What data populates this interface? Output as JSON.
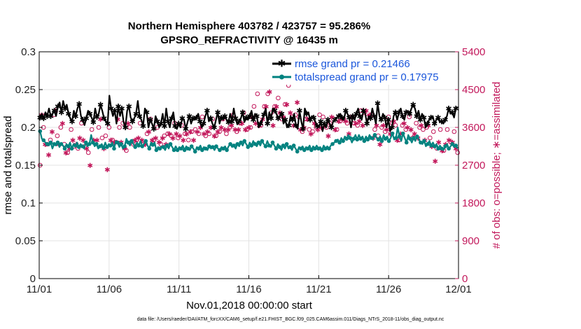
{
  "chart_data": {
    "type": "line",
    "title": "Northern Hemisphere 403782 / 423757 = 95.286%",
    "subtitle": "GPSRO_REFRACTIVITY @ 16435 m",
    "xlabel": "Nov.01,2018 00:00:00 start",
    "ylabel": "rmse and totalspread",
    "ylabel_right": "# of obs: o=possible; ∗=assimilated",
    "footnote": "data file: /Users/raeder/DAI/ATM_forcXX/CAM6_setup/f.e21.FHIST_BGC.f09_025.CAM6assim.011/Diags_NTrS_2018-11/obs_diag_output.nc",
    "xlim": [
      0,
      30
    ],
    "ylim": [
      0,
      0.3
    ],
    "ylim_right": [
      0,
      5400
    ],
    "grid": true,
    "x_ticks": [
      0,
      5,
      10,
      15,
      20,
      25,
      30
    ],
    "x_tick_labels": [
      "11/01",
      "11/06",
      "11/11",
      "11/16",
      "11/21",
      "11/26",
      "12/01"
    ],
    "y_ticks": [
      0,
      0.05,
      0.1,
      0.15,
      0.2,
      0.25,
      0.3
    ],
    "y_tick_labels": [
      "0",
      "0.05",
      "0.1",
      "0.15",
      "0.2",
      "0.25",
      "0.3"
    ],
    "y_ticks_right": [
      0,
      900,
      1800,
      2700,
      3600,
      4500,
      5400
    ],
    "y_tick_labels_right": [
      "0",
      "900",
      "1800",
      "2700",
      "3600",
      "4500",
      "5400"
    ],
    "legend_position": "top-right",
    "colors": {
      "rmse": "#000000",
      "spread": "#00827f",
      "obs": "#c2185b"
    },
    "series": [
      {
        "name": "rmse grand pr = 0.21466",
        "values": [
          0.213,
          0.218,
          0.212,
          0.22,
          0.215,
          0.225,
          0.215,
          0.218,
          0.222,
          0.215,
          0.228,
          0.233,
          0.22,
          0.235,
          0.225,
          0.23,
          0.218,
          0.212,
          0.208,
          0.222,
          0.215,
          0.225,
          0.231,
          0.215,
          0.21,
          0.203,
          0.212,
          0.222,
          0.218,
          0.213,
          0.207,
          0.225,
          0.214,
          0.218,
          0.23,
          0.222,
          0.212,
          0.208,
          0.205,
          0.242,
          0.225,
          0.215,
          0.222,
          0.205,
          0.228,
          0.215,
          0.225,
          0.207,
          0.2,
          0.222,
          0.228,
          0.213,
          0.208,
          0.212,
          0.218,
          0.235,
          0.215,
          0.21,
          0.202,
          0.225,
          0.22,
          0.2,
          0.21,
          0.205,
          0.198,
          0.215,
          0.208,
          0.2,
          0.205,
          0.218,
          0.202,
          0.225,
          0.208,
          0.2,
          0.212,
          0.22,
          0.202,
          0.198,
          0.205,
          0.2,
          0.212,
          0.21,
          0.198,
          0.207,
          0.215,
          0.205,
          0.212,
          0.21,
          0.213,
          0.218,
          0.208,
          0.2,
          0.205,
          0.215,
          0.222,
          0.208,
          0.212,
          0.205,
          0.2,
          0.21,
          0.22,
          0.205,
          0.213,
          0.21,
          0.215,
          0.21,
          0.207,
          0.218,
          0.208,
          0.225,
          0.212,
          0.204,
          0.208,
          0.212,
          0.22,
          0.207,
          0.213,
          0.21,
          0.215,
          0.222,
          0.21,
          0.218,
          0.215,
          0.2,
          0.205,
          0.21,
          0.217,
          0.225,
          0.205,
          0.22,
          0.212,
          0.225,
          0.222,
          0.218,
          0.212,
          0.215,
          0.218,
          0.205,
          0.21,
          0.2,
          0.203,
          0.215,
          0.21,
          0.218,
          0.203,
          0.198,
          0.222,
          0.208,
          0.198,
          0.225,
          0.218,
          0.22,
          0.21,
          0.215,
          0.213,
          0.207,
          0.202,
          0.2,
          0.208,
          0.195,
          0.205,
          0.2,
          0.21,
          0.205,
          0.2,
          0.208,
          0.21,
          0.213,
          0.215,
          0.218,
          0.213,
          0.21,
          0.222,
          0.218,
          0.213,
          0.2,
          0.215,
          0.21,
          0.218,
          0.225,
          0.215,
          0.21,
          0.222,
          0.218,
          0.205,
          0.215,
          0.212,
          0.225,
          0.215,
          0.205,
          0.232,
          0.215,
          0.21,
          0.218,
          0.213,
          0.2,
          0.21,
          0.195,
          0.2,
          0.215,
          0.22,
          0.21,
          0.22,
          0.225,
          0.215,
          0.21,
          0.22,
          0.222,
          0.218,
          0.225,
          0.23,
          0.225,
          0.215,
          0.222,
          0.21,
          0.218,
          0.213,
          0.2,
          0.205,
          0.21,
          0.213,
          0.215,
          0.205,
          0.21,
          0.213,
          0.207,
          0.208,
          0.205,
          0.21,
          0.215,
          0.225,
          0.218,
          0.22,
          0.213,
          0.225,
          0.227
        ]
      },
      {
        "name": "totalspread grand pr = 0.17975",
        "values": [
          0.195,
          0.185,
          0.183,
          0.18,
          0.178,
          0.176,
          0.18,
          0.172,
          0.178,
          0.176,
          0.18,
          0.174,
          0.178,
          0.176,
          0.172,
          0.178,
          0.175,
          0.18,
          0.172,
          0.178,
          0.176,
          0.18,
          0.174,
          0.178,
          0.175,
          0.172,
          0.18,
          0.175,
          0.178,
          0.19,
          0.18,
          0.175,
          0.178,
          0.172,
          0.175,
          0.178,
          0.173,
          0.18,
          0.174,
          0.178,
          0.176,
          0.18,
          0.172,
          0.182,
          0.18,
          0.174,
          0.178,
          0.172,
          0.175,
          0.185,
          0.18,
          0.176,
          0.182,
          0.178,
          0.174,
          0.18,
          0.176,
          0.182,
          0.175,
          0.178,
          0.182,
          0.176,
          0.172,
          0.18,
          0.177,
          0.18,
          0.17,
          0.174,
          0.172,
          0.175,
          0.174,
          0.17,
          0.176,
          0.172,
          0.178,
          0.174,
          0.17,
          0.175,
          0.17,
          0.174,
          0.172,
          0.176,
          0.17,
          0.175,
          0.172,
          0.17,
          0.175,
          0.172,
          0.168,
          0.174,
          0.172,
          0.176,
          0.17,
          0.174,
          0.172,
          0.17,
          0.175,
          0.172,
          0.174,
          0.17,
          0.175,
          0.172,
          0.17,
          0.174,
          0.172,
          0.175,
          0.17,
          0.175,
          0.178,
          0.174,
          0.176,
          0.172,
          0.178,
          0.175,
          0.18,
          0.176,
          0.182,
          0.178,
          0.174,
          0.18,
          0.176,
          0.182,
          0.178,
          0.175,
          0.18,
          0.176,
          0.182,
          0.178,
          0.175,
          0.182,
          0.176,
          0.174,
          0.18,
          0.176,
          0.172,
          0.178,
          0.174,
          0.17,
          0.176,
          0.172,
          0.178,
          0.172,
          0.174,
          0.17,
          0.176,
          0.172,
          0.168,
          0.174,
          0.172,
          0.175,
          0.17,
          0.174,
          0.172,
          0.176,
          0.17,
          0.175,
          0.172,
          0.176,
          0.172,
          0.174,
          0.17,
          0.176,
          0.172,
          0.175,
          0.172,
          0.176,
          0.178,
          0.18,
          0.182,
          0.184,
          0.18,
          0.186,
          0.182,
          0.188,
          0.185,
          0.19,
          0.186,
          0.18,
          0.185,
          0.19,
          0.184,
          0.19,
          0.185,
          0.188,
          0.182,
          0.188,
          0.184,
          0.19,
          0.186,
          0.184,
          0.19,
          0.186,
          0.184,
          0.188,
          0.182,
          0.19,
          0.185,
          0.188,
          0.182,
          0.186,
          0.192,
          0.184,
          0.186,
          0.2,
          0.188,
          0.182,
          0.192,
          0.186,
          0.18,
          0.19,
          0.185,
          0.18,
          0.186,
          0.182,
          0.188,
          0.184,
          0.18,
          0.178,
          0.182,
          0.175,
          0.178,
          0.182,
          0.176,
          0.18,
          0.175,
          0.178,
          0.172,
          0.176,
          0.172,
          0.17,
          0.175,
          0.178,
          0.172,
          0.175,
          0.178,
          0.174,
          0.176,
          0.172
        ]
      },
      {
        "name": "possible",
        "values": [
          2700,
          4000,
          3600,
          3300,
          3200,
          3050,
          3300,
          3600,
          3900,
          4100,
          3400,
          3300,
          3600,
          3800,
          3200,
          3100,
          3000,
          3200,
          3550,
          3400,
          3150,
          3300,
          3100,
          3450,
          3700,
          3400,
          3150,
          3200,
          3000,
          2800,
          3550,
          3400,
          3250,
          3400,
          3600,
          3900,
          3350,
          3200,
          3400,
          3100,
          3600,
          3400,
          3300,
          3350,
          3250,
          3900,
          3600,
          3350,
          3700,
          3200,
          3050,
          3800,
          3600,
          3350,
          3200,
          3400,
          3300,
          3450,
          3700,
          3400,
          3200,
          3300,
          3450,
          3600,
          3800,
          3400,
          3300,
          3450,
          3600,
          3350,
          3200,
          3450,
          3400,
          3300,
          3450,
          3550,
          3400,
          3450,
          3700,
          3550,
          3350,
          3500,
          3650,
          3400,
          3450,
          3550,
          3300,
          3600,
          3500,
          3400,
          3550,
          3600,
          3450,
          3700,
          3850,
          3550,
          3400,
          3600,
          3450,
          3700,
          3800,
          3500,
          3400,
          3600,
          3500,
          3700,
          3800,
          3650,
          3450,
          3650,
          3600,
          3750,
          3900,
          3650,
          3500,
          3650,
          3700,
          3800,
          3950,
          3650,
          3550,
          3700,
          3600,
          3950,
          4100,
          3800,
          4400,
          3750,
          3650,
          3900,
          4100,
          4200,
          4400,
          4550,
          3950,
          3750,
          4100,
          4200,
          4300,
          4050,
          3800,
          3950,
          4150,
          4250,
          4600,
          4050,
          3850,
          3750,
          3900,
          4300,
          3850,
          3650,
          3500,
          3700,
          3800,
          3900,
          3550,
          3550,
          3500,
          3800,
          3600,
          3650,
          3900,
          3700,
          3850,
          3750,
          3600,
          3500,
          3700,
          3950,
          3800,
          3650,
          3550,
          3850,
          3750,
          3900,
          3800,
          3850,
          3700,
          3550,
          3850,
          3950,
          3700,
          3800,
          3650,
          3850,
          4000,
          3750,
          3950,
          4100,
          3850,
          4000,
          3900,
          3450,
          3550,
          3750,
          3400,
          3300,
          3600,
          3750,
          3500,
          3650,
          3850,
          3550,
          3700,
          3850,
          3650,
          3400,
          3300,
          3550,
          3650,
          3800,
          3550,
          3700,
          3850,
          3650,
          3350,
          3550,
          3700,
          3450,
          3600,
          3750,
          3550,
          3400,
          3600,
          3750,
          3350,
          3250,
          3500,
          2900,
          3100,
          3350,
          3550,
          3150,
          3050,
          3300,
          3550,
          3400,
          3250,
          3350,
          3500,
          3200,
          3000
        ]
      },
      {
        "name": "assimilated",
        "values": [
          2600,
          3900,
          3500,
          3200,
          3100,
          2950,
          3200,
          3500,
          3800,
          4000,
          3300,
          3200,
          3500,
          3700,
          3100,
          3000,
          2900,
          3100,
          3450,
          3300,
          3050,
          3200,
          3000,
          3350,
          3600,
          3300,
          3050,
          3100,
          2900,
          2700,
          3450,
          3300,
          3150,
          3300,
          3500,
          3800,
          3250,
          3100,
          3300,
          2600,
          3500,
          3300,
          3200,
          3250,
          3150,
          3800,
          3500,
          3250,
          3600,
          3100,
          2950,
          3700,
          3500,
          3250,
          3100,
          3300,
          3200,
          3350,
          3600,
          3300,
          3100,
          3200,
          3350,
          3500,
          3700,
          3300,
          3200,
          3350,
          3500,
          3250,
          3100,
          3350,
          3300,
          3200,
          3350,
          3450,
          3300,
          3350,
          3600,
          3450,
          3250,
          3400,
          3550,
          3300,
          3350,
          3450,
          3200,
          3500,
          3400,
          3300,
          3450,
          3500,
          3350,
          3600,
          3750,
          3450,
          3300,
          3500,
          3350,
          3600,
          3700,
          3400,
          3300,
          3500,
          3400,
          3600,
          3700,
          3550,
          3350,
          3550,
          3500,
          3650,
          3800,
          3550,
          3400,
          3550,
          3600,
          3700,
          3850,
          3550,
          3450,
          3600,
          3500,
          3850,
          4000,
          3700,
          4300,
          3650,
          3550,
          3800,
          4000,
          4100,
          4300,
          4450,
          3850,
          3650,
          4000,
          4100,
          4200,
          3950,
          3700,
          3850,
          4050,
          4150,
          4500,
          3950,
          3750,
          3650,
          3800,
          4200,
          3750,
          3550,
          3400,
          3600,
          3700,
          3800,
          3450,
          3450,
          3400,
          3700,
          3500,
          3550,
          3800,
          3600,
          3750,
          3650,
          3500,
          3400,
          3600,
          3850,
          3700,
          3550,
          3450,
          3750,
          3650,
          3800,
          3700,
          3750,
          3600,
          3450,
          3750,
          3850,
          3600,
          3700,
          3550,
          3750,
          3900,
          3650,
          3850,
          4000,
          3750,
          3900,
          3800,
          3350,
          3450,
          3650,
          3300,
          3200,
          3500,
          3650,
          3400,
          3550,
          3750,
          3450,
          3600,
          3750,
          3550,
          3300,
          3200,
          3450,
          3550,
          3700,
          3450,
          3600,
          3750,
          3550,
          3250,
          3450,
          3600,
          3350,
          3500,
          3650,
          3450,
          3300,
          3500,
          3650,
          3250,
          3150,
          3400,
          2800,
          3000,
          3250,
          3450,
          3050,
          2950,
          3200,
          3450,
          3300,
          3150,
          3250,
          3400,
          3100,
          2900
        ]
      }
    ]
  }
}
